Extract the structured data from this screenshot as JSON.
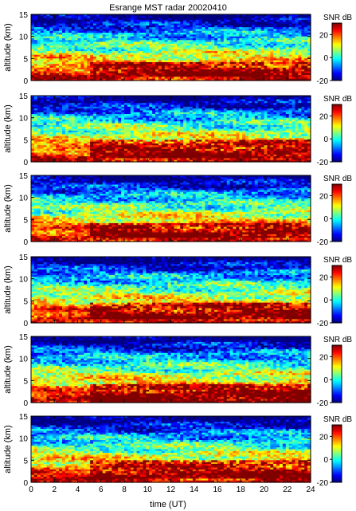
{
  "figure": {
    "title": "Esrange MST radar 20020410",
    "xlabel": "time (UT)",
    "ylabel": "altitude (km)",
    "colorbar_label": "SNR dB"
  },
  "chart_data": {
    "type": "heatmap",
    "panels": 6,
    "title": "Esrange MST radar 20020410",
    "xlabel": "time (UT)",
    "ylabel": "altitude (km)",
    "xlim": [
      0,
      24
    ],
    "ylim": [
      0,
      15
    ],
    "x_ticks": [
      0,
      2,
      4,
      6,
      8,
      10,
      12,
      14,
      16,
      18,
      20,
      22,
      24
    ],
    "y_ticks": [
      0,
      5,
      10,
      15
    ],
    "colorbar": {
      "label": "SNR dB",
      "range": [
        -20,
        30
      ],
      "ticks": [
        -20,
        0,
        20
      ],
      "colormap": "jet"
    },
    "panel_patterns": [
      {
        "strong_layer_km": [
          1,
          4
        ],
        "note_seed": 1
      },
      {
        "strong_layer_km": [
          1,
          5
        ],
        "note_seed": 2
      },
      {
        "strong_layer_km": [
          1,
          4
        ],
        "note_seed": 3
      },
      {
        "strong_layer_km": [
          1,
          4.5
        ],
        "note_seed": 4
      },
      {
        "strong_layer_km": [
          0,
          4
        ],
        "note_seed": 5
      },
      {
        "strong_layer_km": [
          1,
          5
        ],
        "note_seed": 6
      }
    ]
  }
}
